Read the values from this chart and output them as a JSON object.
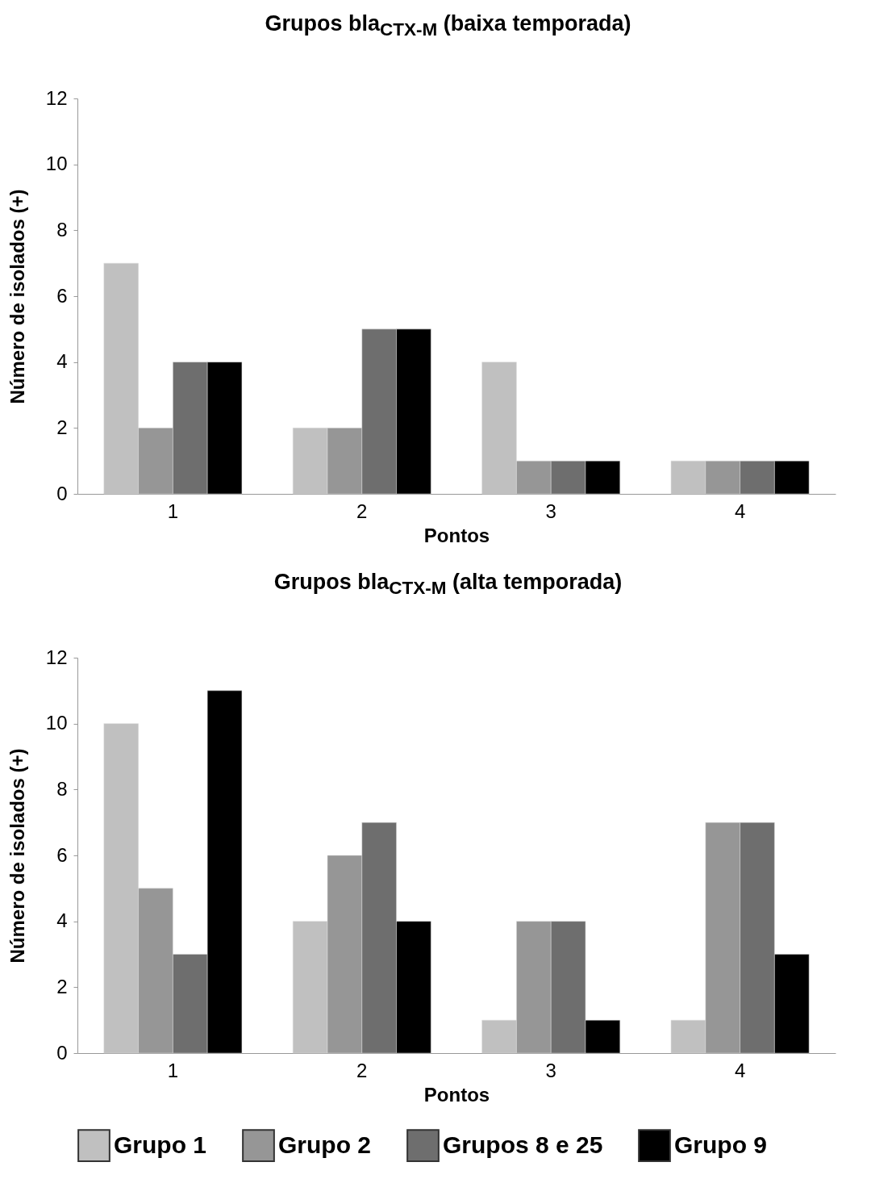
{
  "chart_data": [
    {
      "type": "bar",
      "title": "Grupos bla$_{CTX-M}$ (baixa temporada)",
      "xlabel": "Pontos",
      "ylabel": "Número de isolados (+)",
      "categories": [
        "1",
        "2",
        "3",
        "4"
      ],
      "series": [
        {
          "color": "#c0c0c0",
          "values": [
            7,
            2,
            4,
            1
          ]
        },
        {
          "color": "#969696",
          "values": [
            2,
            2,
            1,
            1
          ]
        },
        {
          "color": "#6e6e6e",
          "values": [
            4,
            5,
            1,
            1
          ]
        },
        {
          "color": "#000000",
          "values": [
            4,
            5,
            1,
            1
          ]
        }
      ],
      "ylim": [
        0,
        12
      ],
      "yticks": [
        0,
        2,
        4,
        6,
        8,
        10,
        12
      ],
      "grid": false,
      "legend": false
    },
    {
      "type": "bar",
      "title": "Grupos bla$_{CTX-M}$ (alta temporada)",
      "xlabel": "Pontos",
      "ylabel": "Número de isolados (+)",
      "categories": [
        "1",
        "2",
        "3",
        "4"
      ],
      "series": [
        {
          "name": "Grupo 1",
          "color": "#c0c0c0",
          "values": [
            10,
            4,
            1,
            1
          ]
        },
        {
          "name": "Grupo 2",
          "color": "#969696",
          "values": [
            5,
            6,
            4,
            7
          ]
        },
        {
          "name": "Grupos 8 e 25",
          "color": "#6e6e6e",
          "values": [
            3,
            7,
            4,
            7
          ]
        },
        {
          "name": "Grupo 9",
          "color": "#000000",
          "values": [
            11,
            4,
            1,
            3
          ]
        }
      ],
      "ylim": [
        0,
        12
      ],
      "yticks": [
        0,
        2,
        4,
        6,
        8,
        10,
        12
      ],
      "grid": false,
      "legend": "bottom"
    }
  ]
}
